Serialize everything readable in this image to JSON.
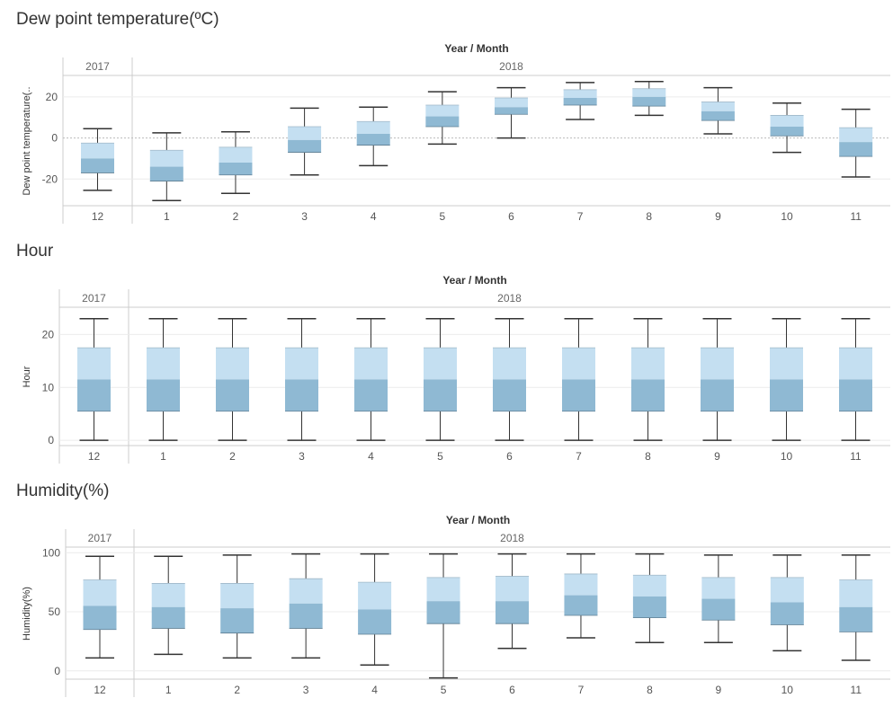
{
  "colors": {
    "box_lower": "#8fb9d3",
    "box_upper": "#c4dff1",
    "whisker": "#333333",
    "grid": "#ececec",
    "zero_line": "#bbbbbb",
    "divider": "#cccccc"
  },
  "chart_data": [
    {
      "type": "box",
      "title": "Dew point temperature(ºC)",
      "header": "Year / Month",
      "ylabel": "Dew point temperature(..",
      "ylim": [
        -33,
        30
      ],
      "yticks": [
        -20,
        0,
        20
      ],
      "zero_line": true,
      "years": [
        {
          "label": "2017",
          "months": 1
        },
        {
          "label": "2018",
          "months": 11
        }
      ],
      "categories": [
        "12",
        "1",
        "2",
        "3",
        "4",
        "5",
        "6",
        "7",
        "8",
        "9",
        "10",
        "11"
      ],
      "boxes": [
        {
          "min": -25.5,
          "q1": -17,
          "median": -10,
          "q3": -2.5,
          "max": 4.5
        },
        {
          "min": -30.5,
          "q1": -21,
          "median": -14,
          "q3": -6,
          "max": 2.5
        },
        {
          "min": -27,
          "q1": -18,
          "median": -12,
          "q3": -4.5,
          "max": 3
        },
        {
          "min": -18,
          "q1": -7,
          "median": -1,
          "q3": 5.5,
          "max": 14.5
        },
        {
          "min": -13.5,
          "q1": -3.5,
          "median": 2,
          "q3": 8,
          "max": 15
        },
        {
          "min": -3,
          "q1": 5.5,
          "median": 10.5,
          "q3": 16,
          "max": 22.5
        },
        {
          "min": 0,
          "q1": 11.5,
          "median": 15,
          "q3": 19.5,
          "max": 24.5
        },
        {
          "min": 9,
          "q1": 16,
          "median": 19.5,
          "q3": 23.5,
          "max": 27
        },
        {
          "min": 11,
          "q1": 15.5,
          "median": 20,
          "q3": 24,
          "max": 27.5
        },
        {
          "min": 2,
          "q1": 8.5,
          "median": 13,
          "q3": 17.5,
          "max": 24.5
        },
        {
          "min": -7,
          "q1": 1,
          "median": 5.5,
          "q3": 11,
          "max": 17
        },
        {
          "min": -19,
          "q1": -9,
          "median": -2,
          "q3": 5,
          "max": 14
        }
      ]
    },
    {
      "type": "box",
      "title": "Hour",
      "header": "Year / Month",
      "ylabel": "Hour",
      "ylim": [
        -1,
        25
      ],
      "yticks": [
        0,
        10,
        20
      ],
      "zero_line": false,
      "years": [
        {
          "label": "2017",
          "months": 1
        },
        {
          "label": "2018",
          "months": 11
        }
      ],
      "categories": [
        "12",
        "1",
        "2",
        "3",
        "4",
        "5",
        "6",
        "7",
        "8",
        "9",
        "10",
        "11"
      ],
      "boxes": [
        {
          "min": 0,
          "q1": 5.5,
          "median": 11.5,
          "q3": 17.5,
          "max": 23
        },
        {
          "min": 0,
          "q1": 5.5,
          "median": 11.5,
          "q3": 17.5,
          "max": 23
        },
        {
          "min": 0,
          "q1": 5.5,
          "median": 11.5,
          "q3": 17.5,
          "max": 23
        },
        {
          "min": 0,
          "q1": 5.5,
          "median": 11.5,
          "q3": 17.5,
          "max": 23
        },
        {
          "min": 0,
          "q1": 5.5,
          "median": 11.5,
          "q3": 17.5,
          "max": 23
        },
        {
          "min": 0,
          "q1": 5.5,
          "median": 11.5,
          "q3": 17.5,
          "max": 23
        },
        {
          "min": 0,
          "q1": 5.5,
          "median": 11.5,
          "q3": 17.5,
          "max": 23
        },
        {
          "min": 0,
          "q1": 5.5,
          "median": 11.5,
          "q3": 17.5,
          "max": 23
        },
        {
          "min": 0,
          "q1": 5.5,
          "median": 11.5,
          "q3": 17.5,
          "max": 23
        },
        {
          "min": 0,
          "q1": 5.5,
          "median": 11.5,
          "q3": 17.5,
          "max": 23
        },
        {
          "min": 0,
          "q1": 5.5,
          "median": 11.5,
          "q3": 17.5,
          "max": 23
        },
        {
          "min": 0,
          "q1": 5.5,
          "median": 11.5,
          "q3": 17.5,
          "max": 23
        }
      ]
    },
    {
      "type": "box",
      "title": "Humidity(%)",
      "header": "Year / Month",
      "ylabel": "Humidity(%)",
      "ylim": [
        -7,
        104
      ],
      "yticks": [
        0,
        50,
        100
      ],
      "zero_line": false,
      "years": [
        {
          "label": "2017",
          "months": 1
        },
        {
          "label": "2018",
          "months": 11
        }
      ],
      "categories": [
        "12",
        "1",
        "2",
        "3",
        "4",
        "5",
        "6",
        "7",
        "8",
        "9",
        "10",
        "11"
      ],
      "boxes": [
        {
          "min": 11,
          "q1": 35,
          "median": 55,
          "q3": 77,
          "max": 97
        },
        {
          "min": 14,
          "q1": 36,
          "median": 54,
          "q3": 74,
          "max": 97
        },
        {
          "min": 11,
          "q1": 32,
          "median": 53,
          "q3": 74,
          "max": 98
        },
        {
          "min": 11,
          "q1": 36,
          "median": 57,
          "q3": 78,
          "max": 99
        },
        {
          "min": 5,
          "q1": 31,
          "median": 52,
          "q3": 75,
          "max": 99
        },
        {
          "min": -6,
          "q1": 40,
          "median": 59,
          "q3": 79,
          "max": 99
        },
        {
          "min": 19,
          "q1": 40,
          "median": 59,
          "q3": 80,
          "max": 99
        },
        {
          "min": 28,
          "q1": 47,
          "median": 64,
          "q3": 82,
          "max": 99
        },
        {
          "min": 24,
          "q1": 45,
          "median": 63,
          "q3": 81,
          "max": 99
        },
        {
          "min": 24,
          "q1": 43,
          "median": 61,
          "q3": 79,
          "max": 98
        },
        {
          "min": 17,
          "q1": 39,
          "median": 58,
          "q3": 79,
          "max": 98
        },
        {
          "min": 9,
          "q1": 33,
          "median": 54,
          "q3": 77,
          "max": 98
        }
      ]
    }
  ]
}
